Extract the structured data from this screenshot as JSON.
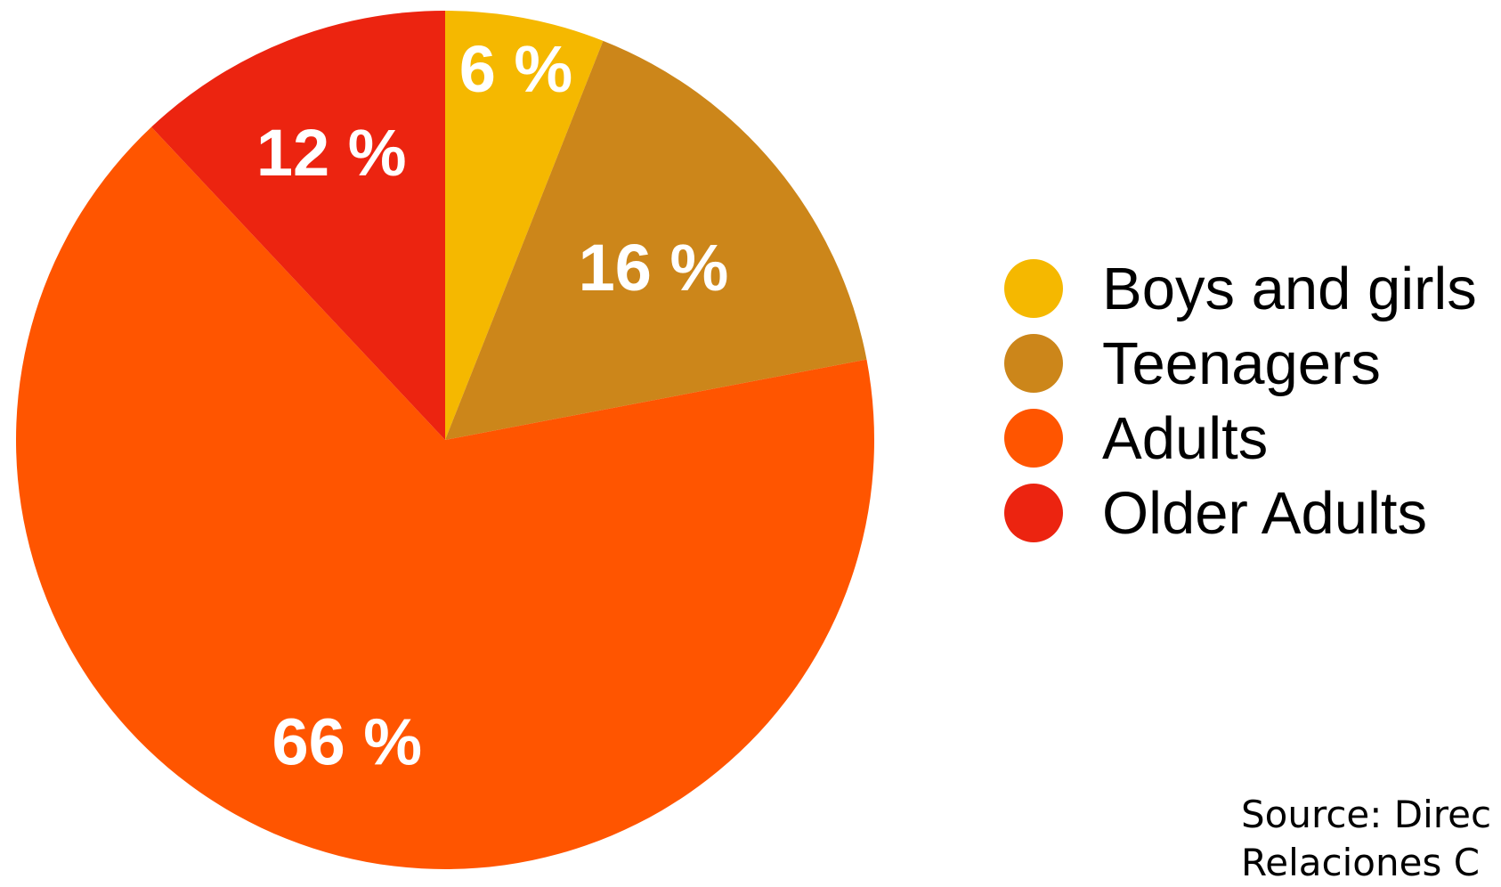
{
  "chart_data": {
    "type": "pie",
    "title": "",
    "categories": [
      "Boys and girls",
      "Teenagers",
      "Adults",
      "Older Adults"
    ],
    "values": [
      6,
      16,
      66,
      12
    ],
    "value_labels": [
      "6 %",
      "16 %",
      "66 %",
      "12 %"
    ],
    "unit": "%",
    "colors": [
      "#F5B800",
      "#CC861A",
      "#FF5500",
      "#EC2410"
    ],
    "start": "12 o'clock",
    "direction": "clockwise",
    "legend_position": "right",
    "grid": false
  },
  "legend": {
    "items": [
      {
        "label": "Boys and girls",
        "color": "#F5B800"
      },
      {
        "label": "Teenagers",
        "color": "#CC861A"
      },
      {
        "label": "Adults",
        "color": "#FF5500"
      },
      {
        "label": "Older Adults",
        "color": "#EC2410"
      }
    ]
  },
  "source": {
    "line1": "Source: Direc",
    "line2": "Relaciones C"
  }
}
